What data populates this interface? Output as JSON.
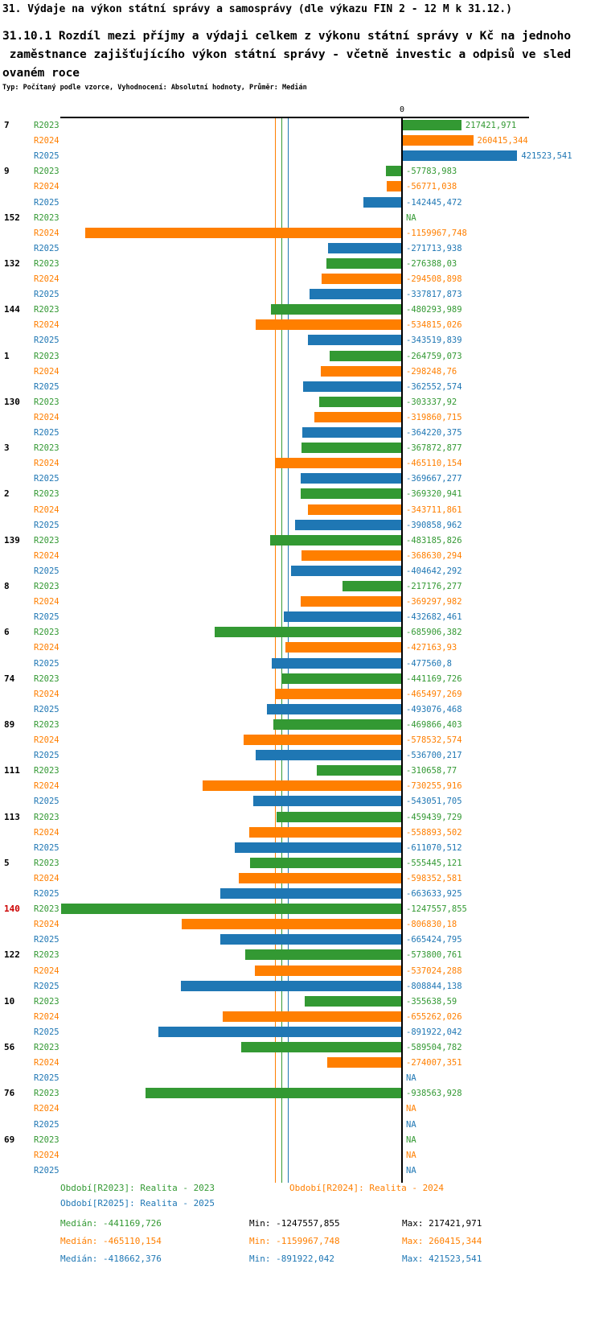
{
  "title": "31. Výdaje na výkon státní správy a samosprávy (dle výkazu FIN 2 - 12 M k 31.12.)",
  "subtitle": "31.10.1 Rozdíl mezi příjmy a výdaji celkem z výkonu státní správy v Kč na jednoho\n zaměstnance zajišťujícího výkon státní správy - včetně investic a odpisů ve sled\novaném roce",
  "meta_line": "Typ: Počítaný podle vzorce, Vyhodnocení: Absolutní hodnoty, Průměr: Medián",
  "chart_data": {
    "type": "bar",
    "orientation": "horizontal",
    "title": "31.10.1 Rozdíl mezi příjmy a výdaji celkem z výkonu státní správy v Kč na jednoho zaměstnance zajišťujícího výkon státní správy - včetně investic a odpisů ve sledovaném roce",
    "zero_tick_label": "0",
    "xlim": [
      -1300000,
      460000
    ],
    "series_order": [
      "R2023",
      "R2024",
      "R2025"
    ],
    "series_colors": {
      "R2023": "#339933",
      "R2024": "#ff7f00",
      "R2025": "#1f77b4"
    },
    "medians": {
      "R2023": -441169.726,
      "R2024": -465110.154,
      "R2025": -418662.376
    },
    "groups": [
      {
        "id": "7",
        "values": {
          "R2023": {
            "value": 217421.971,
            "label": "217421,971"
          },
          "R2024": {
            "value": 260415.344,
            "label": "260415,344"
          },
          "R2025": {
            "value": 421523.541,
            "label": "421523,541"
          }
        }
      },
      {
        "id": "9",
        "values": {
          "R2023": {
            "value": -57783.983,
            "label": "-57783,983"
          },
          "R2024": {
            "value": -56771.038,
            "label": "-56771,038"
          },
          "R2025": {
            "value": -142445.472,
            "label": "-142445,472"
          }
        }
      },
      {
        "id": "152",
        "values": {
          "R2023": {
            "value": null,
            "label": "NA"
          },
          "R2024": {
            "value": -1159967.748,
            "label": "-1159967,748"
          },
          "R2025": {
            "value": -271713.938,
            "label": "-271713,938"
          }
        }
      },
      {
        "id": "132",
        "values": {
          "R2023": {
            "value": -276388.03,
            "label": "-276388,03"
          },
          "R2024": {
            "value": -294508.898,
            "label": "-294508,898"
          },
          "R2025": {
            "value": -337817.873,
            "label": "-337817,873"
          }
        }
      },
      {
        "id": "144",
        "values": {
          "R2023": {
            "value": -480293.989,
            "label": "-480293,989"
          },
          "R2024": {
            "value": -534815.026,
            "label": "-534815,026"
          },
          "R2025": {
            "value": -343519.839,
            "label": "-343519,839"
          }
        }
      },
      {
        "id": "1",
        "values": {
          "R2023": {
            "value": -264759.073,
            "label": "-264759,073"
          },
          "R2024": {
            "value": -298248.76,
            "label": "-298248,76"
          },
          "R2025": {
            "value": -362552.574,
            "label": "-362552,574"
          }
        }
      },
      {
        "id": "130",
        "values": {
          "R2023": {
            "value": -303337.92,
            "label": "-303337,92"
          },
          "R2024": {
            "value": -319860.715,
            "label": "-319860,715"
          },
          "R2025": {
            "value": -364220.375,
            "label": "-364220,375"
          }
        }
      },
      {
        "id": "3",
        "values": {
          "R2023": {
            "value": -367872.877,
            "label": "-367872,877"
          },
          "R2024": {
            "value": -465110.154,
            "label": "-465110,154"
          },
          "R2025": {
            "value": -369667.277,
            "label": "-369667,277"
          }
        }
      },
      {
        "id": "2",
        "values": {
          "R2023": {
            "value": -369320.941,
            "label": "-369320,941"
          },
          "R2024": {
            "value": -343711.861,
            "label": "-343711,861"
          },
          "R2025": {
            "value": -390858.962,
            "label": "-390858,962"
          }
        }
      },
      {
        "id": "139",
        "values": {
          "R2023": {
            "value": -483185.826,
            "label": "-483185,826"
          },
          "R2024": {
            "value": -368630.294,
            "label": "-368630,294"
          },
          "R2025": {
            "value": -404642.292,
            "label": "-404642,292"
          }
        }
      },
      {
        "id": "8",
        "values": {
          "R2023": {
            "value": -217176.277,
            "label": "-217176,277"
          },
          "R2024": {
            "value": -369297.982,
            "label": "-369297,982"
          },
          "R2025": {
            "value": -432682.461,
            "label": "-432682,461"
          }
        }
      },
      {
        "id": "6",
        "values": {
          "R2023": {
            "value": -685906.382,
            "label": "-685906,382"
          },
          "R2024": {
            "value": -427163.93,
            "label": "-427163,93"
          },
          "R2025": {
            "value": -477560.8,
            "label": "-477560,8"
          }
        }
      },
      {
        "id": "74",
        "values": {
          "R2023": {
            "value": -441169.726,
            "label": "-441169,726"
          },
          "R2024": {
            "value": -465497.269,
            "label": "-465497,269"
          },
          "R2025": {
            "value": -493076.468,
            "label": "-493076,468"
          }
        }
      },
      {
        "id": "89",
        "values": {
          "R2023": {
            "value": -469866.403,
            "label": "-469866,403"
          },
          "R2024": {
            "value": -578532.574,
            "label": "-578532,574"
          },
          "R2025": {
            "value": -536700.217,
            "label": "-536700,217"
          }
        }
      },
      {
        "id": "111",
        "values": {
          "R2023": {
            "value": -310658.77,
            "label": "-310658,77"
          },
          "R2024": {
            "value": -730255.916,
            "label": "-730255,916"
          },
          "R2025": {
            "value": -543051.705,
            "label": "-543051,705"
          }
        }
      },
      {
        "id": "113",
        "values": {
          "R2023": {
            "value": -459439.729,
            "label": "-459439,729"
          },
          "R2024": {
            "value": -558893.502,
            "label": "-558893,502"
          },
          "R2025": {
            "value": -611070.512,
            "label": "-611070,512"
          }
        }
      },
      {
        "id": "5",
        "values": {
          "R2023": {
            "value": -555445.121,
            "label": "-555445,121"
          },
          "R2024": {
            "value": -598352.581,
            "label": "-598352,581"
          },
          "R2025": {
            "value": -663633.925,
            "label": "-663633,925"
          }
        }
      },
      {
        "id": "140",
        "id_color": "#cc0000",
        "values": {
          "R2023": {
            "value": -1247557.855,
            "label": "-1247557,855"
          },
          "R2024": {
            "value": -806830.18,
            "label": "-806830,18"
          },
          "R2025": {
            "value": -665424.795,
            "label": "-665424,795"
          }
        }
      },
      {
        "id": "122",
        "values": {
          "R2023": {
            "value": -573800.761,
            "label": "-573800,761"
          },
          "R2024": {
            "value": -537024.288,
            "label": "-537024,288"
          },
          "R2025": {
            "value": -808844.138,
            "label": "-808844,138"
          }
        }
      },
      {
        "id": "10",
        "values": {
          "R2023": {
            "value": -355638.59,
            "label": "-355638,59"
          },
          "R2024": {
            "value": -655262.026,
            "label": "-655262,026"
          },
          "R2025": {
            "value": -891922.042,
            "label": "-891922,042"
          }
        }
      },
      {
        "id": "56",
        "values": {
          "R2023": {
            "value": -589504.782,
            "label": "-589504,782"
          },
          "R2024": {
            "value": -274007.351,
            "label": "-274007,351"
          },
          "R2025": {
            "value": null,
            "label": "NA"
          }
        }
      },
      {
        "id": "76",
        "values": {
          "R2023": {
            "value": -938563.928,
            "label": "-938563,928"
          },
          "R2024": {
            "value": null,
            "label": "NA"
          },
          "R2025": {
            "value": null,
            "label": "NA"
          }
        }
      },
      {
        "id": "69",
        "values": {
          "R2023": {
            "value": null,
            "label": "NA"
          },
          "R2024": {
            "value": null,
            "label": "NA"
          },
          "R2025": {
            "value": null,
            "label": "NA"
          }
        }
      }
    ]
  },
  "legend": {
    "r2023": "Období[R2023]: Realita - 2023",
    "r2024": "Období[R2024]: Realita - 2024",
    "r2025": "Období[R2025]: Realita - 2025"
  },
  "stats": {
    "r2023": {
      "median": "Medián: -441169,726",
      "min": "Min: -1247557,855",
      "max": "Max: 217421,971"
    },
    "r2024": {
      "median": "Medián: -465110,154",
      "min": "Min: -1159967,748",
      "max": "Max: 260415,344"
    },
    "r2025": {
      "median": "Medián: -418662,376",
      "min": "Min: -891922,042",
      "max": "Max: 421523,541"
    }
  }
}
